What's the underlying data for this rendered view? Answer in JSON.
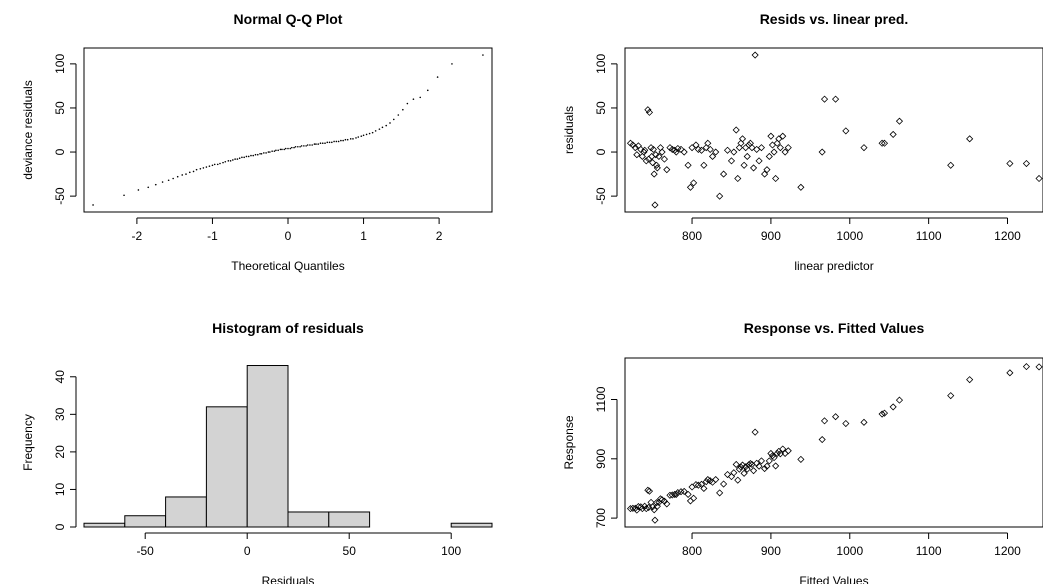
{
  "chart_data": [
    {
      "type": "scatter",
      "title": "Normal Q-Q Plot",
      "xlabel": "Theoretical Quantiles",
      "ylabel": "deviance residuals",
      "xlim": [
        -2.7,
        2.7
      ],
      "ylim": [
        -68,
        118
      ],
      "xticks": [
        -2,
        -1,
        0,
        1,
        2
      ],
      "yticks": [
        -50,
        0,
        50,
        100
      ],
      "points_per_quantile_fn": "sorted residuals",
      "x": [
        -2.58,
        -2.17,
        -1.98,
        -1.85,
        -1.75,
        -1.66,
        -1.58,
        -1.52,
        -1.46,
        -1.4,
        -1.35,
        -1.3,
        -1.25,
        -1.21,
        -1.16,
        -1.12,
        -1.08,
        -1.04,
        -1.0,
        -0.97,
        -0.93,
        -0.9,
        -0.86,
        -0.83,
        -0.79,
        -0.76,
        -0.73,
        -0.7,
        -0.67,
        -0.64,
        -0.61,
        -0.58,
        -0.55,
        -0.52,
        -0.49,
        -0.46,
        -0.43,
        -0.4,
        -0.37,
        -0.35,
        -0.32,
        -0.29,
        -0.26,
        -0.24,
        -0.21,
        -0.18,
        -0.16,
        -0.13,
        -0.1,
        -0.08,
        -0.05,
        -0.03,
        0.0,
        0.03,
        0.05,
        0.08,
        0.1,
        0.13,
        0.16,
        0.18,
        0.21,
        0.24,
        0.26,
        0.29,
        0.32,
        0.35,
        0.37,
        0.4,
        0.43,
        0.46,
        0.49,
        0.52,
        0.55,
        0.58,
        0.61,
        0.64,
        0.67,
        0.7,
        0.73,
        0.76,
        0.79,
        0.83,
        0.86,
        0.9,
        0.93,
        0.97,
        1.0,
        1.04,
        1.08,
        1.12,
        1.16,
        1.21,
        1.25,
        1.3,
        1.35,
        1.4,
        1.46,
        1.52,
        1.58,
        1.66,
        1.75,
        1.85,
        1.98,
        2.17,
        2.58
      ],
      "y": [
        -60,
        -49,
        -43,
        -40,
        -37,
        -34,
        -32,
        -30,
        -28,
        -26,
        -25,
        -23,
        -22,
        -20,
        -19,
        -18,
        -17,
        -16,
        -15,
        -14,
        -14,
        -13,
        -12,
        -11,
        -10,
        -10,
        -9,
        -8,
        -8,
        -7,
        -6,
        -6,
        -5,
        -5,
        -4,
        -4,
        -3,
        -3,
        -2,
        -2,
        -1,
        -1,
        0,
        0,
        1,
        1,
        2,
        2,
        3,
        3,
        3,
        4,
        4,
        4,
        5,
        5,
        6,
        6,
        6,
        7,
        7,
        7,
        8,
        8,
        8,
        9,
        9,
        9,
        10,
        10,
        10,
        11,
        11,
        11,
        12,
        12,
        12,
        13,
        13,
        14,
        14,
        15,
        15,
        16,
        17,
        18,
        19,
        20,
        21,
        22,
        24,
        26,
        28,
        30,
        33,
        37,
        42,
        48,
        55,
        60,
        62,
        70,
        85,
        100,
        110
      ]
    },
    {
      "type": "scatter",
      "title": "Resids vs. linear pred.",
      "xlabel": "linear predictor",
      "ylabel": "residuals",
      "xlim": [
        715,
        1245
      ],
      "ylim": [
        -68,
        118
      ],
      "xticks": [
        800,
        900,
        1000,
        1100,
        1200
      ],
      "yticks": [
        -50,
        0,
        50,
        100
      ],
      "x": [
        722,
        725,
        728,
        730,
        732,
        735,
        737,
        739,
        740,
        742,
        744,
        745,
        746,
        748,
        749,
        750,
        751,
        752,
        753,
        754,
        755,
        756,
        758,
        760,
        762,
        765,
        768,
        772,
        775,
        778,
        780,
        782,
        786,
        790,
        795,
        798,
        800,
        802,
        805,
        808,
        812,
        815,
        818,
        820,
        823,
        826,
        830,
        835,
        840,
        845,
        850,
        853,
        856,
        858,
        860,
        862,
        864,
        866,
        868,
        870,
        872,
        874,
        876,
        878,
        880,
        882,
        885,
        888,
        892,
        895,
        898,
        900,
        902,
        904,
        906,
        908,
        910,
        912,
        915,
        918,
        922,
        938,
        965,
        968,
        982,
        995,
        1018,
        1041,
        1044,
        1055,
        1063,
        1128,
        1152,
        1203,
        1224,
        1240
      ],
      "y": [
        10,
        8,
        5,
        -3,
        7,
        3,
        -5,
        0,
        2,
        -10,
        48,
        -8,
        45,
        5,
        -5,
        -12,
        3,
        -25,
        -60,
        -3,
        -15,
        -18,
        -5,
        5,
        0,
        -8,
        -20,
        5,
        3,
        2,
        0,
        4,
        3,
        0,
        -15,
        -40,
        5,
        -35,
        8,
        3,
        2,
        -15,
        5,
        10,
        3,
        -5,
        0,
        -50,
        -25,
        2,
        -10,
        0,
        25,
        -30,
        5,
        10,
        15,
        -15,
        5,
        -5,
        8,
        10,
        5,
        -18,
        110,
        3,
        -10,
        5,
        -25,
        -20,
        -5,
        18,
        8,
        0,
        -30,
        10,
        15,
        5,
        18,
        0,
        5,
        -40,
        0,
        60,
        60,
        24,
        5,
        10,
        10,
        20,
        35,
        -15,
        15,
        -13,
        -13,
        -30
      ]
    },
    {
      "type": "bar",
      "title": "Histogram of residuals",
      "xlabel": "Residuals",
      "ylabel": "Frequency",
      "xlim": [
        -80,
        120
      ],
      "ylim": [
        0,
        45
      ],
      "xticks": [
        -50,
        0,
        50,
        100
      ],
      "yticks": [
        0,
        10,
        20,
        30,
        40
      ],
      "bin_edges": [
        -80,
        -60,
        -40,
        -20,
        0,
        20,
        40,
        60,
        80,
        100,
        120
      ],
      "values": [
        1,
        3,
        8,
        32,
        43,
        4,
        4,
        0,
        0,
        1
      ]
    },
    {
      "type": "scatter",
      "title": "Response vs. Fitted Values",
      "xlabel": "Fitted Values",
      "ylabel": "Response",
      "xlim": [
        715,
        1245
      ],
      "ylim": [
        670,
        1240
      ],
      "xticks": [
        800,
        900,
        1000,
        1100,
        1200
      ],
      "yticks": [
        700,
        900,
        1100
      ],
      "x": [
        722,
        725,
        728,
        730,
        732,
        735,
        737,
        740,
        742,
        744,
        745,
        746,
        748,
        750,
        752,
        753,
        755,
        756,
        758,
        760,
        762,
        765,
        768,
        772,
        775,
        778,
        780,
        782,
        786,
        790,
        795,
        798,
        800,
        802,
        805,
        808,
        812,
        815,
        818,
        820,
        823,
        826,
        830,
        835,
        840,
        845,
        850,
        853,
        856,
        858,
        860,
        862,
        864,
        866,
        868,
        870,
        872,
        874,
        876,
        878,
        880,
        882,
        885,
        888,
        892,
        895,
        898,
        900,
        902,
        904,
        906,
        908,
        910,
        912,
        915,
        918,
        922,
        938,
        965,
        968,
        982,
        995,
        1018,
        1041,
        1044,
        1055,
        1063,
        1128,
        1152,
        1203,
        1224,
        1240
      ],
      "y": [
        732,
        733,
        733,
        727,
        739,
        738,
        732,
        740,
        732,
        794,
        736,
        791,
        753,
        738,
        728,
        693,
        752,
        740,
        753,
        765,
        762,
        757,
        748,
        777,
        778,
        780,
        780,
        786,
        789,
        790,
        780,
        758,
        805,
        767,
        813,
        811,
        814,
        800,
        823,
        830,
        826,
        821,
        830,
        785,
        815,
        847,
        840,
        853,
        881,
        828,
        865,
        872,
        879,
        851,
        873,
        865,
        880,
        884,
        881,
        860,
        990,
        885,
        875,
        893,
        867,
        875,
        893,
        918,
        910,
        904,
        876,
        918,
        925,
        917,
        933,
        918,
        927,
        898,
        965,
        1028,
        1042,
        1019,
        1023,
        1051,
        1054,
        1075,
        1098,
        1113,
        1167,
        1190,
        1211,
        1210
      ]
    }
  ]
}
